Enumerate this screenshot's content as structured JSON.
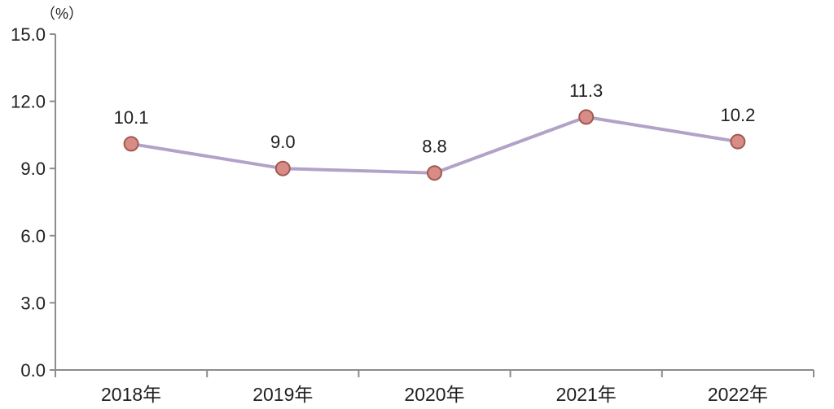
{
  "chart_data": {
    "type": "line",
    "unit_label": "（%）",
    "categories": [
      "2018年",
      "2019年",
      "2020年",
      "2021年",
      "2022年"
    ],
    "values": [
      10.1,
      9.0,
      8.8,
      11.3,
      10.2
    ],
    "data_labels": [
      "10.1",
      "9.0",
      "8.8",
      "11.3",
      "10.2"
    ],
    "y_ticks": [
      "15.0",
      "12.0",
      "9.0",
      "6.0",
      "3.0",
      "0.0"
    ],
    "ylim": [
      0,
      15
    ],
    "grid": false,
    "legend": "none",
    "colors": {
      "line": "#b3a2c7",
      "marker_fill": "#d98c85",
      "marker_border": "#9e5a52",
      "axis": "#8c8c8c",
      "text": "#1f1f1f",
      "background": "#ffffff"
    }
  }
}
